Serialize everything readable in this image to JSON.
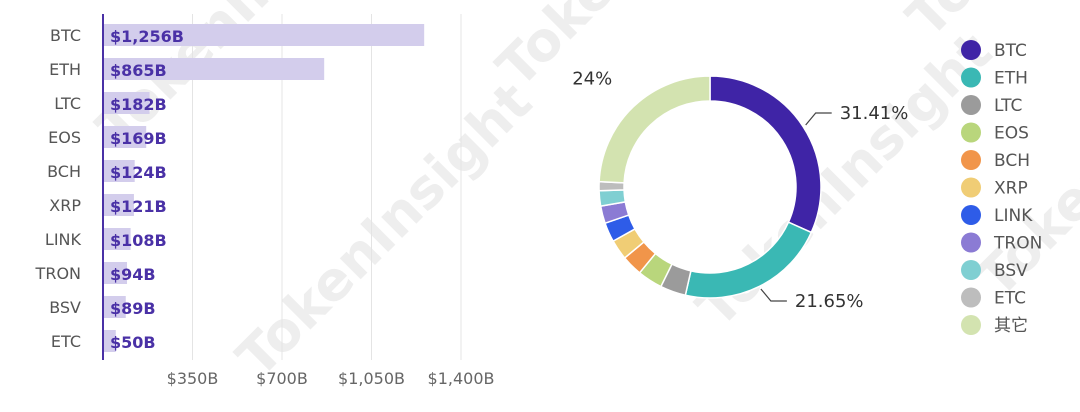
{
  "chart_data": [
    {
      "type": "bar",
      "orientation": "horizontal",
      "categories": [
        "BTC",
        "ETH",
        "LTC",
        "EOS",
        "BCH",
        "XRP",
        "LINK",
        "TRON",
        "BSV",
        "ETC"
      ],
      "values": [
        1256,
        865,
        182,
        169,
        124,
        121,
        108,
        94,
        89,
        50
      ],
      "value_labels": [
        "$1,256B",
        "$865B",
        "$182B",
        "$169B",
        "$124B",
        "$121B",
        "$108B",
        "$94B",
        "$89B",
        "$50B"
      ],
      "xticks": [
        350,
        700,
        1050,
        1400
      ],
      "xtick_labels": [
        "$350B",
        "$700B",
        "$1,050B",
        "$1,400B"
      ],
      "xlim": [
        0,
        1400
      ],
      "grid": true,
      "bar_color": "#d3cdec",
      "axis_color": "#4a31a6"
    },
    {
      "type": "pie",
      "style": "donut",
      "labels": [
        "BTC",
        "ETH",
        "LTC",
        "EOS",
        "BCH",
        "XRP",
        "LINK",
        "TRON",
        "BSV",
        "ETC",
        "其它"
      ],
      "values": [
        31.41,
        21.65,
        3.7,
        3.6,
        3.0,
        2.9,
        2.8,
        2.5,
        2.2,
        1.3,
        24
      ],
      "colors": [
        "#3f24a6",
        "#3ab8b4",
        "#9b9b9b",
        "#b9d67c",
        "#f1954a",
        "#f0cd75",
        "#2e5ce8",
        "#8b7bd4",
        "#7fcfd2",
        "#bdbdbd",
        "#d3e3b0"
      ],
      "shown_labels": [
        {
          "index": 0,
          "text": "31.41%"
        },
        {
          "index": 1,
          "text": "21.65%"
        },
        {
          "index": 10,
          "text": "24%"
        }
      ],
      "legend": "right"
    }
  ],
  "watermark": "TokenInsight"
}
